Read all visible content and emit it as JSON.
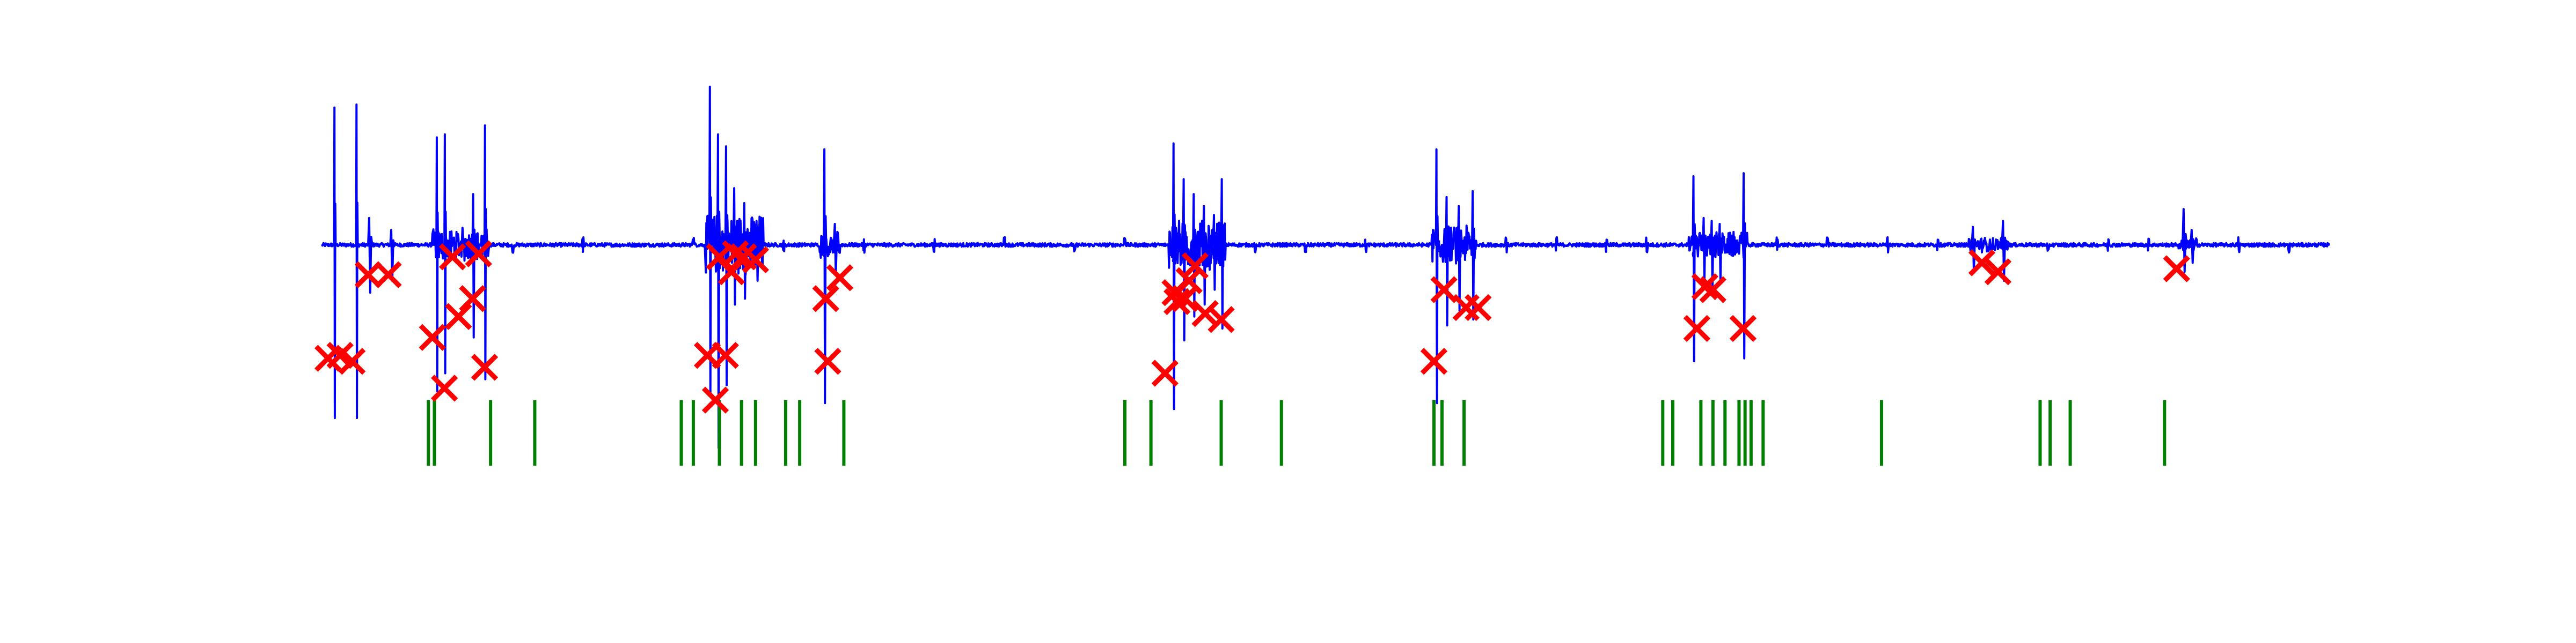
{
  "chart_data": {
    "type": "line",
    "title": "",
    "xlabel": "",
    "ylabel": "",
    "xlim": [
      0,
      100
    ],
    "ylim": [
      -0.7,
      0.7
    ],
    "axes_visible": false,
    "grid": false,
    "legend": "none",
    "colors": {
      "signal": "#0000ff",
      "detected": "#ff0000",
      "reference": "#008000"
    },
    "series": [
      {
        "type": "line",
        "color": "#0000ff",
        "baseline": 0,
        "noise_level": 0.006,
        "events": [
          {
            "x": 0.6,
            "amp": 0.46,
            "neg": 0.58,
            "width": 0.08
          },
          {
            "x": 1.7,
            "amp": 0.47,
            "neg": 0.58,
            "width": 0.08
          },
          {
            "x": 2.3,
            "amp": 0.09,
            "neg": 0.16,
            "width": 0.2
          },
          {
            "x": 3.4,
            "amp": 0.05,
            "neg": 0.12,
            "width": 0.2
          },
          {
            "x": 5.7,
            "amp": 0.36,
            "neg": 0.49,
            "width": 0.08
          },
          {
            "x": 6.1,
            "amp": 0.37,
            "neg": 0.43,
            "width": 0.08
          },
          {
            "x": 7.5,
            "amp": 0.17,
            "neg": 0.31,
            "width": 0.12
          },
          {
            "x": 8.1,
            "amp": 0.4,
            "neg": 0.45,
            "width": 0.08
          },
          {
            "x": 19.3,
            "amp": 0.53,
            "neg": 0.5,
            "width": 0.1
          },
          {
            "x": 19.7,
            "amp": 0.37,
            "neg": 0.68,
            "width": 0.12
          },
          {
            "x": 20.1,
            "amp": 0.33,
            "neg": 0.47,
            "width": 0.12
          },
          {
            "x": 20.5,
            "amp": 0.19,
            "neg": 0.2,
            "width": 0.15
          },
          {
            "x": 21.0,
            "amp": 0.14,
            "neg": 0.18,
            "width": 0.15
          },
          {
            "x": 21.6,
            "amp": 0.08,
            "neg": 0.12,
            "width": 0.2
          },
          {
            "x": 25.0,
            "amp": 0.32,
            "neg": 0.53,
            "width": 0.12
          },
          {
            "x": 25.5,
            "amp": 0.07,
            "neg": 0.1,
            "width": 0.2
          },
          {
            "x": 42.4,
            "amp": 0.34,
            "neg": 0.55,
            "width": 0.1
          },
          {
            "x": 42.9,
            "amp": 0.22,
            "neg": 0.32,
            "width": 0.12
          },
          {
            "x": 43.4,
            "amp": 0.17,
            "neg": 0.24,
            "width": 0.12
          },
          {
            "x": 43.9,
            "amp": 0.13,
            "neg": 0.2,
            "width": 0.15
          },
          {
            "x": 44.4,
            "amp": 0.1,
            "neg": 0.15,
            "width": 0.15
          },
          {
            "x": 44.8,
            "amp": 0.22,
            "neg": 0.28,
            "width": 0.12
          },
          {
            "x": 55.5,
            "amp": 0.32,
            "neg": 0.53,
            "width": 0.1
          },
          {
            "x": 56.0,
            "amp": 0.16,
            "neg": 0.27,
            "width": 0.12
          },
          {
            "x": 56.6,
            "amp": 0.13,
            "neg": 0.22,
            "width": 0.15
          },
          {
            "x": 57.3,
            "amp": 0.18,
            "neg": 0.25,
            "width": 0.12
          },
          {
            "x": 68.3,
            "amp": 0.23,
            "neg": 0.39,
            "width": 0.12
          },
          {
            "x": 68.8,
            "amp": 0.09,
            "neg": 0.12,
            "width": 0.15
          },
          {
            "x": 69.2,
            "amp": 0.08,
            "neg": 0.14,
            "width": 0.15
          },
          {
            "x": 69.6,
            "amp": 0.07,
            "neg": 0.12,
            "width": 0.15
          },
          {
            "x": 70.8,
            "amp": 0.24,
            "neg": 0.38,
            "width": 0.12
          },
          {
            "x": 82.2,
            "amp": 0.06,
            "neg": 0.09,
            "width": 0.2
          },
          {
            "x": 83.7,
            "amp": 0.08,
            "neg": 0.12,
            "width": 0.2
          },
          {
            "x": 92.7,
            "amp": 0.12,
            "neg": 0.09,
            "width": 0.2
          },
          {
            "x": 93.1,
            "amp": 0.05,
            "neg": 0.06,
            "width": 0.2
          }
        ],
        "bursts": [
          {
            "x0": 5.5,
            "x1": 8.3,
            "amp": 0.05
          },
          {
            "x0": 19.1,
            "x1": 22.0,
            "amp": 0.1
          },
          {
            "x0": 24.8,
            "x1": 25.8,
            "amp": 0.04
          },
          {
            "x0": 42.2,
            "x1": 45.0,
            "amp": 0.08
          },
          {
            "x0": 55.3,
            "x1": 57.5,
            "amp": 0.06
          },
          {
            "x0": 68.1,
            "x1": 71.0,
            "amp": 0.04
          },
          {
            "x0": 82.0,
            "x1": 84.0,
            "amp": 0.02
          },
          {
            "x0": 92.5,
            "x1": 93.4,
            "amp": 0.02
          }
        ],
        "small_blips": [
          7.0,
          9.5,
          13.0,
          18.5,
          23.0,
          27.0,
          30.5,
          34.0,
          37.5,
          40.0,
          46.5,
          49.0,
          52.0,
          59.0,
          61.5,
          64.0,
          66.0,
          72.5,
          75.0,
          78.0,
          80.5,
          86.0,
          89.0,
          91.0,
          95.5,
          98.0
        ]
      },
      {
        "type": "scatter",
        "marker": "x",
        "color": "#ff0000",
        "x": [
          0.3,
          0.9,
          1.5,
          2.3,
          3.3,
          5.5,
          6.1,
          6.5,
          6.8,
          7.5,
          7.8,
          8.1,
          19.2,
          19.6,
          19.8,
          20.1,
          20.4,
          20.6,
          21.0,
          21.6,
          25.1,
          25.2,
          25.8,
          42.0,
          42.5,
          42.6,
          43.0,
          43.2,
          43.5,
          44.0,
          44.8,
          55.4,
          55.9,
          57.0,
          57.6,
          68.5,
          68.9,
          69.3,
          70.8,
          82.7,
          83.5,
          92.4
        ],
        "y": [
          -0.38,
          -0.37,
          -0.39,
          -0.1,
          -0.1,
          -0.31,
          -0.48,
          -0.04,
          -0.24,
          -0.18,
          -0.03,
          -0.41,
          -0.37,
          -0.52,
          -0.04,
          -0.37,
          -0.09,
          -0.03,
          -0.04,
          -0.05,
          -0.18,
          -0.39,
          -0.11,
          -0.43,
          -0.16,
          -0.19,
          -0.18,
          -0.12,
          -0.07,
          -0.23,
          -0.25,
          -0.39,
          -0.15,
          -0.21,
          -0.21,
          -0.28,
          -0.14,
          -0.15,
          -0.28,
          -0.06,
          -0.09,
          -0.08
        ]
      },
      {
        "type": "ticks",
        "color": "#008000",
        "y0": -0.52,
        "y1": -0.74,
        "x": [
          5.3,
          5.6,
          8.4,
          10.6,
          17.9,
          18.5,
          19.8,
          20.9,
          21.6,
          23.1,
          23.8,
          26.0,
          40.0,
          41.3,
          44.8,
          47.8,
          55.4,
          55.8,
          56.9,
          66.8,
          67.3,
          68.7,
          69.3,
          69.9,
          70.6,
          70.9,
          71.2,
          71.8,
          77.7,
          85.6,
          86.1,
          87.1,
          91.8
        ]
      }
    ]
  }
}
